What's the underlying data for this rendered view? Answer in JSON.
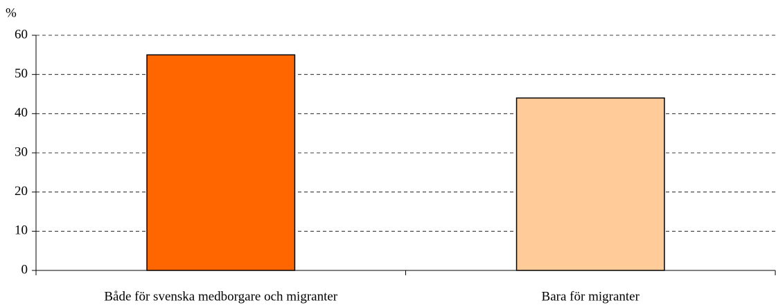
{
  "chart_data": {
    "type": "bar",
    "y_label": "%",
    "categories": [
      "Både för svenska medborgare och migranter",
      "Bara för migranter"
    ],
    "values": [
      55,
      44
    ],
    "colors": [
      "#ff6600",
      "#ffcc99"
    ],
    "ylim": [
      0,
      60
    ],
    "yticks": [
      0,
      10,
      20,
      30,
      40,
      50,
      60
    ],
    "grid": true
  }
}
